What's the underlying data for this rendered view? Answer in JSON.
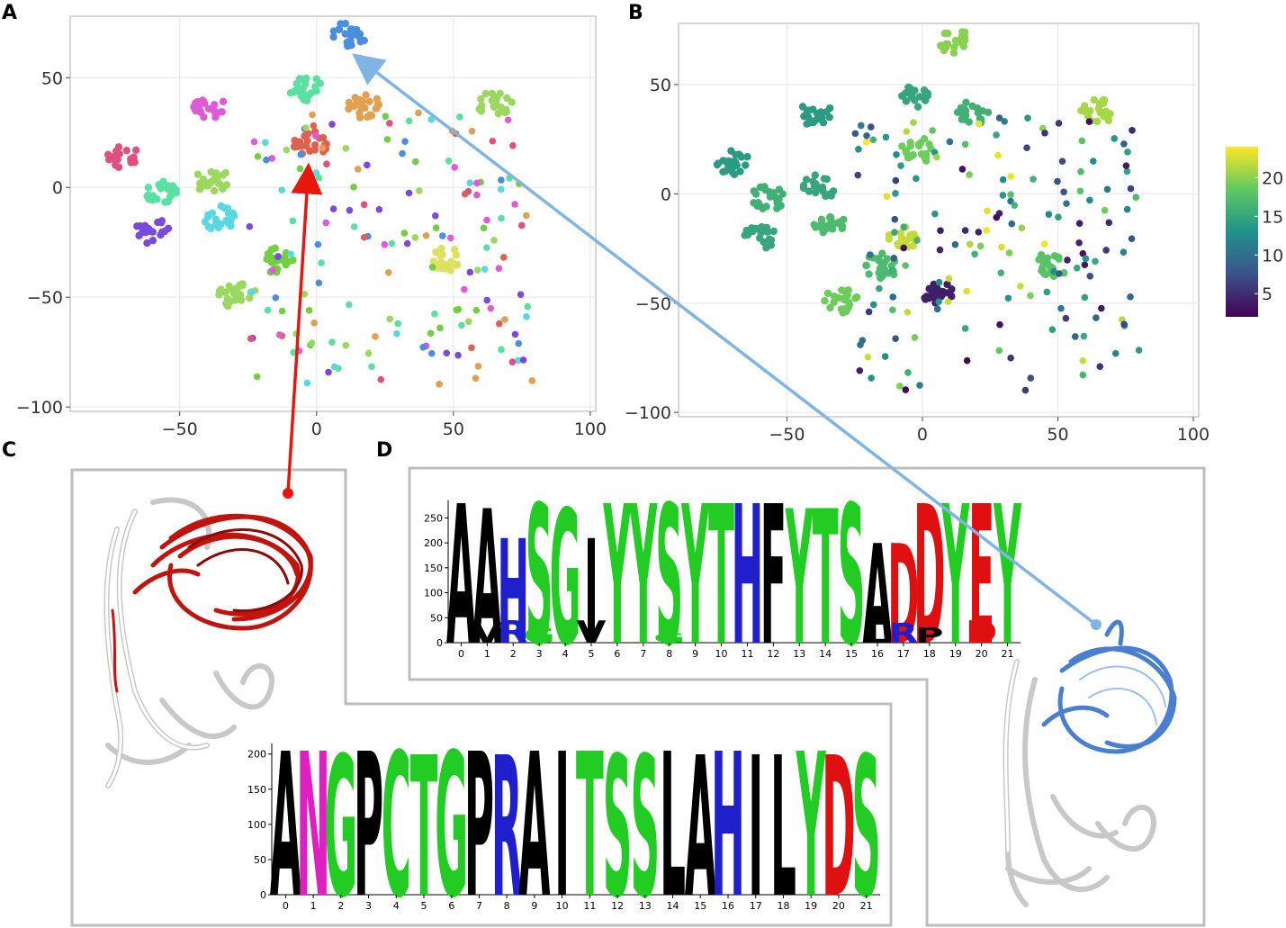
{
  "panels": {
    "a": "A",
    "b": "B",
    "c": "C",
    "d": "D"
  },
  "colors": {
    "grid": "#e6e6e6",
    "panel_border": "#c8c8c8",
    "frame_border": "#bdbdbd",
    "red_arrow": "#e8170e",
    "blue_arrow": "#80b4e3",
    "logo_letters": {
      "A": "#000000",
      "N": "#e01fc3",
      "G": "#22cc22",
      "P": "#000000",
      "C": "#22cc22",
      "T": "#22cc22",
      "R": "#1f1fcc",
      "I": "#000000",
      "S": "#22cc22",
      "L": "#000000",
      "H": "#1f1fcc",
      "Y": "#22cc22",
      "D": "#e01010",
      "F": "#000000",
      "V": "#000000",
      "E": "#e01010",
      "W": "#000000",
      "K": "#1f1fcc",
      "Q": "#e01fc3"
    },
    "cluster_palette": [
      "#e05ad8",
      "#5ae0a0",
      "#4a8ee0",
      "#e0604f",
      "#e0a04f",
      "#9ad860",
      "#58d8e0",
      "#7a4ae0",
      "#e0507f",
      "#70d040"
    ],
    "viridis": [
      "#440154",
      "#3b528b",
      "#21918c",
      "#5ec962",
      "#fde725"
    ]
  },
  "chart_data": [
    {
      "id": "A",
      "type": "scatter",
      "title": "",
      "xlabel": "",
      "ylabel": "",
      "xlim": [
        -90,
        102
      ],
      "ylim": [
        -102,
        78
      ],
      "xticks": [
        -50,
        0,
        50,
        100
      ],
      "yticks": [
        -100,
        -50,
        0,
        50
      ],
      "xtick_labels": [
        "−50",
        "0",
        "50",
        "100"
      ],
      "ytick_labels": [
        "−100",
        "−50",
        "0",
        "50"
      ],
      "grid": true,
      "color_by": "cluster",
      "clusters": [
        {
          "x": -40,
          "y": 37,
          "color": "#e05ad8"
        },
        {
          "x": -4,
          "y": 45,
          "color": "#5ae0a0"
        },
        {
          "x": 12,
          "y": 70,
          "color": "#4a8ee0"
        },
        {
          "x": -2,
          "y": 20,
          "color": "#e0604f"
        },
        {
          "x": 18,
          "y": 37,
          "color": "#e0a04f"
        },
        {
          "x": -38,
          "y": 3,
          "color": "#9ad860"
        },
        {
          "x": -35,
          "y": -14,
          "color": "#58d8e0"
        },
        {
          "x": -60,
          "y": -20,
          "color": "#7a4ae0"
        },
        {
          "x": -70,
          "y": 14,
          "color": "#e0507f"
        },
        {
          "x": -57,
          "y": -2,
          "color": "#5ae0a0"
        },
        {
          "x": -15,
          "y": -33,
          "color": "#70d040"
        },
        {
          "x": -30,
          "y": -49,
          "color": "#9ad860"
        },
        {
          "x": 47,
          "y": -33,
          "color": "#e0e060"
        },
        {
          "x": 65,
          "y": 38,
          "color": "#9ad860"
        }
      ]
    },
    {
      "id": "B",
      "type": "scatter",
      "title": "",
      "xlabel": "",
      "ylabel": "",
      "xlim": [
        -90,
        102
      ],
      "ylim": [
        -102,
        78
      ],
      "xticks": [
        -50,
        0,
        50,
        100
      ],
      "yticks": [
        -100,
        -50,
        0,
        50
      ],
      "xtick_labels": [
        "−50",
        "0",
        "50",
        "100"
      ],
      "ytick_labels": [
        "−100",
        "−50",
        "0",
        "50"
      ],
      "grid": true,
      "color_by": "continuous",
      "colorbar": {
        "ticks": [
          5,
          10,
          15,
          20
        ],
        "tick_labels": [
          "5",
          "10",
          "15",
          "20"
        ],
        "range": [
          2,
          24
        ]
      },
      "clusters": [
        {
          "x": -40,
          "y": 37,
          "value": 14
        },
        {
          "x": -4,
          "y": 45,
          "value": 15
        },
        {
          "x": 12,
          "y": 70,
          "value": 20
        },
        {
          "x": -2,
          "y": 20,
          "value": 19
        },
        {
          "x": 18,
          "y": 37,
          "value": 16
        },
        {
          "x": -38,
          "y": 3,
          "value": 15
        },
        {
          "x": -35,
          "y": -14,
          "value": 17
        },
        {
          "x": -60,
          "y": -20,
          "value": 15
        },
        {
          "x": -70,
          "y": 14,
          "value": 14
        },
        {
          "x": -57,
          "y": -2,
          "value": 16
        },
        {
          "x": -15,
          "y": -33,
          "value": 17
        },
        {
          "x": -30,
          "y": -49,
          "value": 19
        },
        {
          "x": 47,
          "y": -33,
          "value": 18
        },
        {
          "x": 65,
          "y": 38,
          "value": 21
        },
        {
          "x": -8,
          "y": -20,
          "value": 22
        },
        {
          "x": 5,
          "y": -45,
          "value": 4
        }
      ]
    },
    {
      "id": "C",
      "type": "bar",
      "title": "",
      "xlabel": "",
      "ylabel": "",
      "ylim": [
        0,
        215
      ],
      "yticks": [
        0,
        50,
        100,
        150,
        200
      ],
      "positions": [
        "0",
        "1",
        "2",
        "3",
        "4",
        "5",
        "6",
        "7",
        "8",
        "9",
        "10",
        "11",
        "12",
        "13",
        "14",
        "15",
        "16",
        "17",
        "18",
        "19",
        "20",
        "21"
      ],
      "letters": [
        "A",
        "N",
        "G",
        "P",
        "C",
        "T",
        "G",
        "P",
        "R",
        "A",
        "I",
        "T",
        "S",
        "S",
        "L",
        "A",
        "H",
        "I",
        "L",
        "Y",
        "D",
        "S"
      ],
      "values": [
        205,
        205,
        200,
        205,
        205,
        200,
        205,
        205,
        200,
        205,
        205,
        205,
        200,
        200,
        205,
        200,
        205,
        200,
        200,
        205,
        200,
        200
      ]
    },
    {
      "id": "D",
      "type": "bar",
      "title": "",
      "xlabel": "",
      "ylabel": "",
      "ylim": [
        0,
        285
      ],
      "yticks": [
        0,
        50,
        100,
        150,
        200,
        250
      ],
      "positions": [
        "0",
        "1",
        "2",
        "3",
        "4",
        "5",
        "6",
        "7",
        "8",
        "9",
        "10",
        "11",
        "12",
        "13",
        "14",
        "15",
        "16",
        "17",
        "18",
        "19",
        "20",
        "21"
      ],
      "letters": [
        "A",
        "A",
        "H",
        "S",
        "G",
        "I",
        "Y",
        "Y",
        "S",
        "Y",
        "T",
        "H",
        "F",
        "Y",
        "T",
        "S",
        "A",
        "D",
        "D",
        "Y",
        "E",
        "Y"
      ],
      "values": [
        280,
        270,
        210,
        280,
        270,
        210,
        280,
        280,
        280,
        280,
        280,
        280,
        280,
        270,
        270,
        280,
        200,
        200,
        280,
        280,
        280,
        280
      ],
      "secondary": [
        {
          "pos": 1,
          "letter": "V",
          "value": 40
        },
        {
          "pos": 2,
          "letter": "R",
          "value": 45
        },
        {
          "pos": 3,
          "letter": "G",
          "value": 30
        },
        {
          "pos": 5,
          "letter": "V",
          "value": 45
        },
        {
          "pos": 8,
          "letter": "G",
          "value": 20
        },
        {
          "pos": 16,
          "letter": "L",
          "value": 40
        },
        {
          "pos": 17,
          "letter": "R",
          "value": 40
        },
        {
          "pos": 18,
          "letter": "P",
          "value": 30
        },
        {
          "pos": 20,
          "letter": "D",
          "value": 45
        }
      ]
    }
  ]
}
